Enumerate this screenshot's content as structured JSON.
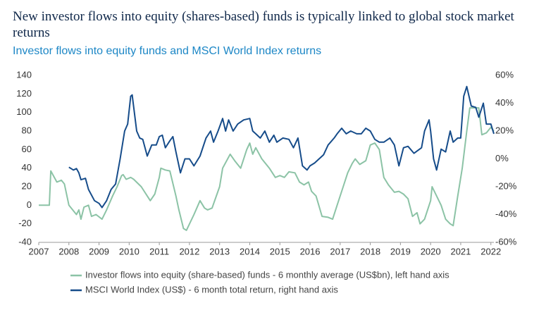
{
  "chart_data": {
    "type": "line",
    "title": "New investor flows into equity (shares-based) funds is typically linked to global stock market returns",
    "subtitle": "Investor flows into equity funds and MSCI World Index returns",
    "xlim": [
      2007,
      2022.1
    ],
    "xticks": [
      2007,
      2008,
      2009,
      2010,
      2011,
      2012,
      2013,
      2014,
      2015,
      2016,
      2017,
      2018,
      2019,
      2020,
      2021,
      2022
    ],
    "ylim": [
      -40,
      140
    ],
    "yticks": [
      -40,
      -20,
      0,
      20,
      40,
      60,
      80,
      100,
      120,
      140
    ],
    "y2lim": [
      -60,
      60
    ],
    "y2ticks": [
      {
        "value": -60,
        "label": "-60%"
      },
      {
        "value": -40,
        "label": "-40%"
      },
      {
        "value": -20,
        "label": "-20%"
      },
      {
        "value": 0,
        "label": "0%"
      },
      {
        "value": 20,
        "label": "20%"
      },
      {
        "value": 40,
        "label": "40%"
      },
      {
        "value": 60,
        "label": "60%"
      }
    ],
    "grid": false,
    "series": [
      {
        "name": "Investor flows into equity (share-based) funds - 6 monthly average (US$bn), left hand axis",
        "color": "#8cc3a6",
        "x": [
          2007,
          2007.35,
          2007.4,
          2007.6,
          2007.75,
          2007.85,
          2008.0,
          2008.25,
          2008.33,
          2008.4,
          2008.5,
          2008.65,
          2008.75,
          2008.9,
          2009.1,
          2009.25,
          2009.45,
          2009.6,
          2009.75,
          2009.8,
          2009.9,
          2010.05,
          2010.15,
          2010.4,
          2010.6,
          2010.7,
          2010.85,
          2011.0,
          2011.05,
          2011.2,
          2011.35,
          2011.55,
          2011.65,
          2011.8,
          2011.9,
          2012.15,
          2012.35,
          2012.5,
          2012.6,
          2012.75,
          2013.0,
          2013.1,
          2013.35,
          2013.5,
          2013.7,
          2013.9,
          2014.0,
          2014.1,
          2014.2,
          2014.4,
          2014.65,
          2014.85,
          2015.0,
          2015.15,
          2015.3,
          2015.5,
          2015.65,
          2015.8,
          2015.95,
          2016.05,
          2016.2,
          2016.4,
          2016.6,
          2016.75,
          2016.9,
          2017.1,
          2017.25,
          2017.4,
          2017.5,
          2017.65,
          2017.85,
          2018.0,
          2018.15,
          2018.3,
          2018.45,
          2018.6,
          2018.8,
          2018.95,
          2019.1,
          2019.25,
          2019.4,
          2019.55,
          2019.65,
          2019.8,
          2020.0,
          2020.05,
          2020.2,
          2020.35,
          2020.5,
          2020.65,
          2020.75,
          2020.9,
          2021.05,
          2021.2,
          2021.3,
          2021.45,
          2021.6,
          2021.7,
          2021.85,
          2022.0,
          2022.1
        ],
        "values": [
          0,
          0,
          37,
          25,
          27,
          23,
          0,
          -10,
          -5,
          -15,
          -2,
          0,
          -12,
          -10,
          -15,
          -5,
          10,
          20,
          32,
          33,
          28,
          30,
          28,
          20,
          10,
          5,
          12,
          30,
          40,
          38,
          37,
          10,
          -5,
          -25,
          -27,
          -10,
          5,
          -3,
          -5,
          -3,
          20,
          40,
          55,
          48,
          40,
          60,
          67,
          55,
          62,
          50,
          40,
          30,
          32,
          30,
          36,
          35,
          25,
          22,
          25,
          15,
          10,
          -12,
          -13,
          -15,
          0,
          20,
          35,
          45,
          50,
          44,
          48,
          65,
          67,
          60,
          30,
          22,
          14,
          15,
          12,
          7,
          -12,
          -8,
          -20,
          -15,
          5,
          20,
          10,
          0,
          -15,
          -20,
          -22,
          10,
          40,
          80,
          105,
          105,
          105,
          76,
          78,
          84,
          80
        ]
      },
      {
        "name": "MSCI World Index (US$) - 6 month total return, right hand axis",
        "color": "#164c8a",
        "axis": "y2",
        "x": [
          2008.0,
          2008.15,
          2008.25,
          2008.33,
          2008.4,
          2008.55,
          2008.65,
          2008.85,
          2009.0,
          2009.1,
          2009.25,
          2009.4,
          2009.55,
          2009.7,
          2009.85,
          2009.95,
          2010.05,
          2010.1,
          2010.25,
          2010.35,
          2010.45,
          2010.6,
          2010.75,
          2010.9,
          2011.0,
          2011.1,
          2011.2,
          2011.35,
          2011.45,
          2011.55,
          2011.7,
          2011.85,
          2012.0,
          2012.15,
          2012.35,
          2012.55,
          2012.7,
          2012.8,
          2012.95,
          2013.1,
          2013.2,
          2013.3,
          2013.45,
          2013.6,
          2013.8,
          2014.0,
          2014.1,
          2014.2,
          2014.35,
          2014.5,
          2014.65,
          2014.8,
          2014.9,
          2015.1,
          2015.3,
          2015.45,
          2015.6,
          2015.75,
          2015.9,
          2016.0,
          2016.15,
          2016.3,
          2016.45,
          2016.6,
          2016.8,
          2016.9,
          2017.05,
          2017.2,
          2017.35,
          2017.55,
          2017.7,
          2017.85,
          2018.0,
          2018.15,
          2018.3,
          2018.45,
          2018.65,
          2018.8,
          2018.95,
          2019.1,
          2019.25,
          2019.45,
          2019.7,
          2019.8,
          2019.95,
          2020.0,
          2020.1,
          2020.2,
          2020.35,
          2020.5,
          2020.65,
          2020.75,
          2020.9,
          2021.0,
          2021.1,
          2021.2,
          2021.35,
          2021.5,
          2021.6,
          2021.75,
          2021.85,
          2022.0,
          2022.1
        ],
        "values": [
          -6,
          -8,
          -7,
          -10,
          -15,
          -14,
          -22,
          -30,
          -32,
          -35,
          -30,
          -22,
          -18,
          0,
          20,
          25,
          45,
          46,
          20,
          15,
          14,
          2,
          10,
          10,
          16,
          17,
          8,
          13,
          16,
          5,
          -10,
          0,
          0,
          -5,
          2,
          15,
          20,
          12,
          20,
          29,
          20,
          28,
          20,
          25,
          28,
          29,
          20,
          18,
          15,
          20,
          12,
          17,
          12,
          15,
          14,
          8,
          15,
          -5,
          -8,
          -5,
          -3,
          0,
          3,
          10,
          15,
          18,
          22,
          18,
          20,
          18,
          18,
          22,
          20,
          14,
          12,
          12,
          15,
          10,
          -5,
          8,
          9,
          4,
          8,
          20,
          28,
          20,
          0,
          -8,
          7,
          5,
          20,
          12,
          15,
          15,
          45,
          52,
          38,
          37,
          30,
          40,
          25,
          25,
          18
        ]
      }
    ]
  }
}
